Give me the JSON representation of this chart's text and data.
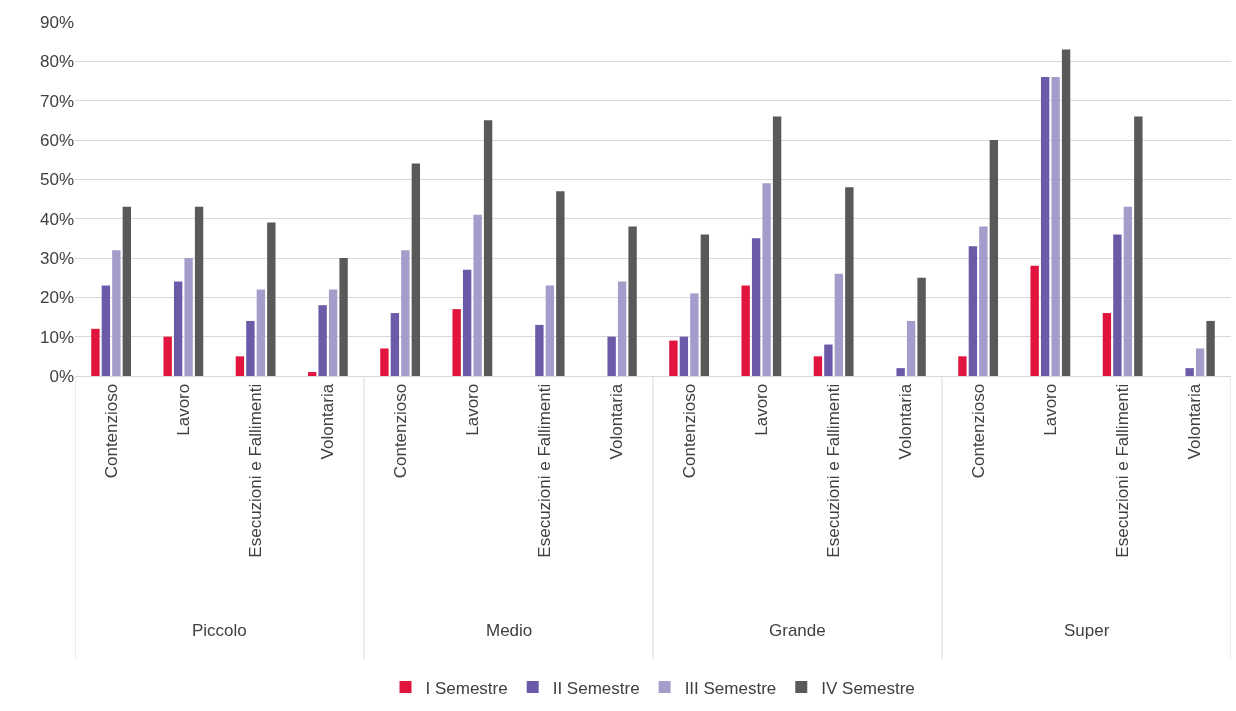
{
  "chart_data": {
    "type": "bar",
    "categories": [
      "Contenzioso",
      "Lavoro",
      "Esecuzioni e Fallimenti",
      "Volontaria",
      "Contenzioso",
      "Lavoro",
      "Esecuzioni e Fallimenti",
      "Volontaria",
      "Contenzioso",
      "Lavoro",
      "Esecuzioni e Fallimenti",
      "Volontaria",
      "Contenzioso",
      "Lavoro",
      "Esecuzioni e Fallimenti",
      "Volontaria"
    ],
    "annotations": [
      "Piccolo",
      "Medio",
      "Grande",
      "Super"
    ],
    "series": [
      {
        "name": "I Semestre",
        "color": "#e0143c",
        "values": [
          12,
          10,
          5,
          1,
          7,
          17,
          0,
          0,
          9,
          23,
          5,
          0,
          5,
          28,
          16,
          0
        ]
      },
      {
        "name": "II Semestre",
        "color": "#6a5aa8",
        "values": [
          23,
          24,
          14,
          18,
          16,
          27,
          13,
          10,
          10,
          35,
          8,
          2,
          33,
          76,
          36,
          2
        ]
      },
      {
        "name": "III Semestre",
        "color": "#a49ccb",
        "values": [
          32,
          30,
          22,
          22,
          32,
          41,
          23,
          24,
          21,
          49,
          26,
          14,
          38,
          76,
          43,
          7
        ]
      },
      {
        "name": "IV Semestre",
        "color": "#595959",
        "values": [
          43,
          43,
          39,
          30,
          54,
          65,
          47,
          38,
          36,
          66,
          48,
          25,
          60,
          83,
          66,
          14
        ]
      }
    ],
    "ylim": [
      0,
      90
    ],
    "yticks": [
      {
        "value": 0,
        "label": "0%"
      },
      {
        "value": 10,
        "label": "10%"
      },
      {
        "value": 20,
        "label": "20%"
      },
      {
        "value": 30,
        "label": "30%"
      },
      {
        "value": 40,
        "label": "40%"
      },
      {
        "value": 50,
        "label": "50%"
      },
      {
        "value": 60,
        "label": "60%"
      },
      {
        "value": 70,
        "label": "70%"
      },
      {
        "value": 80,
        "label": "80%"
      },
      {
        "value": 90,
        "label": "90%"
      }
    ],
    "grid": "y",
    "legend": "bottom"
  }
}
